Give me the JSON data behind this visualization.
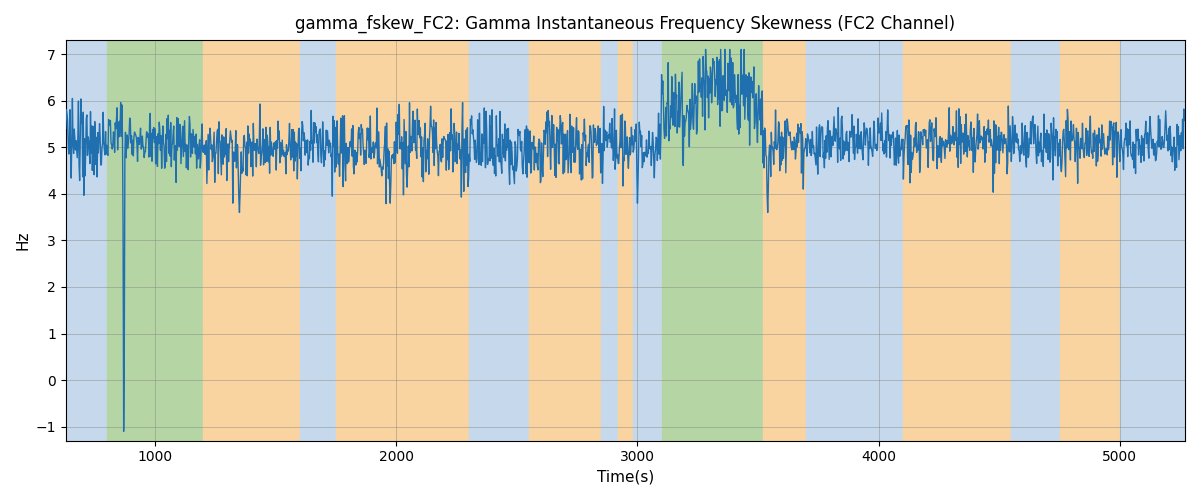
{
  "title": "gamma_fskew_FC2: Gamma Instantaneous Frequency Skewness (FC2 Channel)",
  "xlabel": "Time(s)",
  "ylabel": "Hz",
  "xlim": [
    630,
    5270
  ],
  "ylim": [
    -1.3,
    7.3
  ],
  "yticks": [
    -1,
    0,
    1,
    2,
    3,
    4,
    5,
    6,
    7
  ],
  "xticks": [
    1000,
    2000,
    3000,
    4000,
    5000
  ],
  "line_color": "#2070b0",
  "line_width": 1.0,
  "bg_bands": [
    {
      "xmin": 630,
      "xmax": 800,
      "color": "#c6d9ec"
    },
    {
      "xmin": 800,
      "xmax": 1200,
      "color": "#b5d5a5"
    },
    {
      "xmin": 1200,
      "xmax": 1600,
      "color": "#f9d4a0"
    },
    {
      "xmin": 1600,
      "xmax": 1750,
      "color": "#c6d9ec"
    },
    {
      "xmin": 1750,
      "xmax": 2300,
      "color": "#f9d4a0"
    },
    {
      "xmin": 2300,
      "xmax": 2550,
      "color": "#c6d9ec"
    },
    {
      "xmin": 2550,
      "xmax": 2850,
      "color": "#f9d4a0"
    },
    {
      "xmin": 2850,
      "xmax": 2920,
      "color": "#c6d9ec"
    },
    {
      "xmin": 2920,
      "xmax": 2980,
      "color": "#f9d4a0"
    },
    {
      "xmin": 2980,
      "xmax": 3100,
      "color": "#c6d9ec"
    },
    {
      "xmin": 3100,
      "xmax": 3520,
      "color": "#b5d5a5"
    },
    {
      "xmin": 3520,
      "xmax": 3700,
      "color": "#f9d4a0"
    },
    {
      "xmin": 3700,
      "xmax": 4100,
      "color": "#c6d9ec"
    },
    {
      "xmin": 4100,
      "xmax": 4550,
      "color": "#f9d4a0"
    },
    {
      "xmin": 4550,
      "xmax": 4750,
      "color": "#c6d9ec"
    },
    {
      "xmin": 4750,
      "xmax": 5000,
      "color": "#f9d4a0"
    },
    {
      "xmin": 5000,
      "xmax": 5270,
      "color": "#c6d9ec"
    }
  ],
  "figsize": [
    12,
    5
  ],
  "dpi": 100
}
